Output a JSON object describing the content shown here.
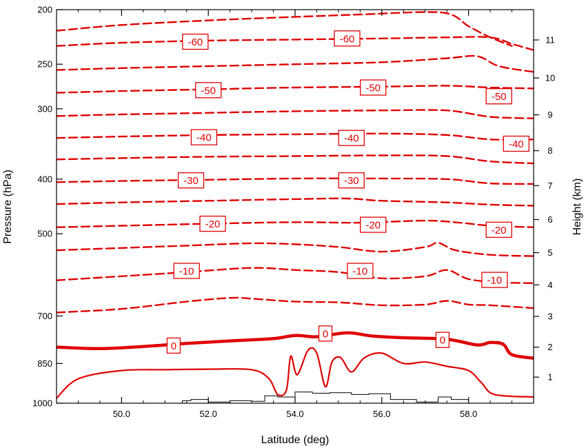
{
  "chart_data": {
    "type": "contour",
    "xlabel": "Latitude (deg)",
    "ylabel_left": "Pressure (hPa)",
    "ylabel_right": "Height (km)",
    "xlim": [
      48.5,
      59.5
    ],
    "ylim_pressure": [
      1000,
      200
    ],
    "x_scale": "linear",
    "y_scale": "log-pressure",
    "x_ticks": [
      {
        "value": 50.0,
        "label": "50.0"
      },
      {
        "value": 52.0,
        "label": "52.0"
      },
      {
        "value": 54.0,
        "label": "54.0"
      },
      {
        "value": 56.0,
        "label": "56.0"
      },
      {
        "value": 58.0,
        "label": "58.0"
      }
    ],
    "pressure_ticks": [
      {
        "value": 200,
        "label": "200"
      },
      {
        "value": 250,
        "label": "250"
      },
      {
        "value": 300,
        "label": "300"
      },
      {
        "value": 400,
        "label": "400"
      },
      {
        "value": 500,
        "label": "500"
      },
      {
        "value": 700,
        "label": "700"
      },
      {
        "value": 850,
        "label": "850"
      },
      {
        "value": 1000,
        "label": "1000"
      }
    ],
    "height_ticks": [
      {
        "value": 1,
        "label": "1"
      },
      {
        "value": 2,
        "label": "2"
      },
      {
        "value": 3,
        "label": "3"
      },
      {
        "value": 4,
        "label": "4"
      },
      {
        "value": 5,
        "label": "5"
      },
      {
        "value": 6,
        "label": "6"
      },
      {
        "value": 7,
        "label": "7"
      },
      {
        "value": 8,
        "label": "8"
      },
      {
        "value": 9,
        "label": "9"
      },
      {
        "value": 10,
        "label": "10"
      },
      {
        "value": 11,
        "label": "11"
      }
    ],
    "contour_color": "#e00000",
    "terrain_color": "#000000",
    "contour_interval": 5,
    "negative_linestyle": "dashed",
    "zero_linestyle": "thick-solid",
    "positive_linestyle": "solid",
    "contours": [
      {
        "level": -65,
        "points": [
          [
            48.5,
            218
          ],
          [
            50,
            213
          ],
          [
            52,
            209
          ],
          [
            54,
            206
          ],
          [
            55.5,
            204
          ],
          [
            57,
            202
          ],
          [
            57.6,
            204
          ],
          [
            58,
            214
          ],
          [
            58.5,
            224
          ],
          [
            59,
            232
          ]
        ]
      },
      {
        "level": -60,
        "points": [
          [
            48.5,
            232
          ],
          [
            50,
            229
          ],
          [
            52,
            227
          ],
          [
            54,
            226
          ],
          [
            56,
            225
          ],
          [
            57.5,
            224
          ],
          [
            58.5,
            224
          ],
          [
            59,
            230
          ],
          [
            59.5,
            236
          ]
        ]
      },
      {
        "level": -55,
        "points": [
          [
            48.5,
            256
          ],
          [
            50,
            254
          ],
          [
            52,
            252
          ],
          [
            54,
            250
          ],
          [
            56,
            248
          ],
          [
            57.5,
            244
          ],
          [
            58.2,
            242
          ],
          [
            58.7,
            252
          ],
          [
            59.5,
            258
          ]
        ]
      },
      {
        "level": -50,
        "points": [
          [
            48.5,
            281
          ],
          [
            50,
            279
          ],
          [
            52,
            277
          ],
          [
            54,
            275
          ],
          [
            56,
            274
          ],
          [
            57.5,
            273
          ],
          [
            58.5,
            275
          ],
          [
            59.5,
            276
          ]
        ]
      },
      {
        "level": -45,
        "points": [
          [
            48.5,
            309
          ],
          [
            50,
            307
          ],
          [
            52,
            305
          ],
          [
            54,
            303
          ],
          [
            56,
            302
          ],
          [
            57.5,
            302
          ],
          [
            58.5,
            310
          ],
          [
            59.5,
            312
          ]
        ]
      },
      {
        "level": -40,
        "points": [
          [
            48.5,
            338
          ],
          [
            50,
            336
          ],
          [
            52,
            334
          ],
          [
            54,
            333
          ],
          [
            56,
            332
          ],
          [
            57.5,
            334
          ],
          [
            58.5,
            340
          ],
          [
            59.5,
            340
          ]
        ]
      },
      {
        "level": -35,
        "points": [
          [
            48.5,
            369
          ],
          [
            50,
            367
          ],
          [
            52,
            365
          ],
          [
            54,
            364
          ],
          [
            56,
            363
          ],
          [
            57.5,
            364
          ],
          [
            58.5,
            372
          ],
          [
            59.5,
            375
          ]
        ]
      },
      {
        "level": -30,
        "points": [
          [
            48.5,
            405
          ],
          [
            50,
            403
          ],
          [
            52,
            401
          ],
          [
            54,
            399
          ],
          [
            56,
            399
          ],
          [
            57.5,
            400
          ],
          [
            58.5,
            407
          ],
          [
            59.5,
            408
          ]
        ]
      },
      {
        "level": -25,
        "points": [
          [
            48.5,
            443
          ],
          [
            50,
            440
          ],
          [
            52,
            437
          ],
          [
            54,
            434
          ],
          [
            55.2,
            433
          ],
          [
            56,
            437
          ],
          [
            57.5,
            440
          ],
          [
            58.5,
            444
          ],
          [
            59.5,
            446
          ]
        ]
      },
      {
        "level": -20,
        "points": [
          [
            48.5,
            487
          ],
          [
            50,
            484
          ],
          [
            52,
            480
          ],
          [
            54,
            477
          ],
          [
            55.5,
            478
          ],
          [
            57,
            474
          ],
          [
            57.8,
            478
          ],
          [
            58.5,
            484
          ],
          [
            59.5,
            487
          ]
        ]
      },
      {
        "level": -15,
        "points": [
          [
            48.5,
            535
          ],
          [
            50,
            530
          ],
          [
            51.5,
            525
          ],
          [
            53,
            520
          ],
          [
            54,
            522
          ],
          [
            55,
            528
          ],
          [
            56,
            538
          ],
          [
            57,
            528
          ],
          [
            57.3,
            519
          ],
          [
            57.7,
            535
          ],
          [
            58.5,
            545
          ],
          [
            59.5,
            548
          ]
        ]
      },
      {
        "level": -10,
        "points": [
          [
            48.5,
            605
          ],
          [
            50,
            595
          ],
          [
            51.5,
            585
          ],
          [
            53,
            575
          ],
          [
            54,
            580
          ],
          [
            55,
            585
          ],
          [
            56,
            600
          ],
          [
            57,
            595
          ],
          [
            57.5,
            580
          ],
          [
            58,
            602
          ],
          [
            58.7,
            610
          ],
          [
            59.5,
            612
          ]
        ]
      },
      {
        "level": -5,
        "points": [
          [
            48.5,
            690
          ],
          [
            50,
            680
          ],
          [
            51.5,
            660
          ],
          [
            52.5,
            650
          ],
          [
            53,
            652
          ],
          [
            54,
            660
          ],
          [
            55,
            662
          ],
          [
            56,
            670
          ],
          [
            57,
            668
          ],
          [
            57.5,
            658
          ],
          [
            58,
            668
          ],
          [
            58.5,
            670
          ],
          [
            59.5,
            678
          ]
        ]
      },
      {
        "level": 0,
        "points": [
          [
            48.5,
            795
          ],
          [
            49.5,
            800
          ],
          [
            50.5,
            793
          ],
          [
            51.5,
            783
          ],
          [
            52.5,
            775
          ],
          [
            53.5,
            768
          ],
          [
            54,
            758
          ],
          [
            54.5,
            762
          ],
          [
            55.2,
            750
          ],
          [
            55.8,
            760
          ],
          [
            56.5,
            765
          ],
          [
            57.5,
            770
          ],
          [
            58.2,
            788
          ],
          [
            58.5,
            780
          ],
          [
            58.8,
            786
          ],
          [
            59,
            820
          ],
          [
            59.5,
            832
          ]
        ]
      },
      {
        "level": 5,
        "points": [
          [
            48.5,
            980
          ],
          [
            49,
            905
          ],
          [
            50,
            875
          ],
          [
            51,
            872
          ],
          [
            52,
            870
          ],
          [
            53,
            872
          ],
          [
            53.4,
            905
          ],
          [
            53.6,
            965
          ],
          [
            53.8,
            948
          ],
          [
            53.9,
            825
          ],
          [
            54.05,
            890
          ],
          [
            54.3,
            805
          ],
          [
            54.5,
            815
          ],
          [
            54.7,
            935
          ],
          [
            54.85,
            845
          ],
          [
            55.05,
            830
          ],
          [
            55.3,
            880
          ],
          [
            55.6,
            830
          ],
          [
            56,
            815
          ],
          [
            56.5,
            850
          ],
          [
            57,
            845
          ],
          [
            57.5,
            860
          ],
          [
            58,
            875
          ],
          [
            58.3,
            920
          ],
          [
            58.6,
            965
          ],
          [
            59.5,
            975
          ]
        ]
      }
    ],
    "terrain": {
      "description": "surface elevation stepped outline near 1000 hPa",
      "points": [
        [
          51.4,
          990
        ],
        [
          51.6,
          985
        ],
        [
          52,
          995
        ],
        [
          52.5,
          990
        ],
        [
          53,
          992
        ],
        [
          53.3,
          970
        ],
        [
          53.6,
          975
        ],
        [
          54,
          955
        ],
        [
          54.4,
          960
        ],
        [
          54.8,
          958
        ],
        [
          55.3,
          965
        ],
        [
          55.7,
          962
        ],
        [
          56.2,
          985
        ],
        [
          56.8,
          995
        ],
        [
          57.3,
          975
        ],
        [
          57.6,
          985
        ],
        [
          58,
          1000
        ]
      ]
    },
    "contour_labels": [
      {
        "text": "-60",
        "x": 51.7,
        "p": 228
      },
      {
        "text": "-60",
        "x": 55.2,
        "p": 225
      },
      {
        "text": "-50",
        "x": 52.0,
        "p": 278
      },
      {
        "text": "-50",
        "x": 55.8,
        "p": 275
      },
      {
        "text": "-50",
        "x": 58.7,
        "p": 285
      },
      {
        "text": "-40",
        "x": 51.9,
        "p": 337
      },
      {
        "text": "-40",
        "x": 55.3,
        "p": 338
      },
      {
        "text": "-40",
        "x": 59.1,
        "p": 346
      },
      {
        "text": "-30",
        "x": 51.6,
        "p": 402
      },
      {
        "text": "-30",
        "x": 55.3,
        "p": 402
      },
      {
        "text": "-20",
        "x": 52.1,
        "p": 480
      },
      {
        "text": "-20",
        "x": 55.8,
        "p": 482
      },
      {
        "text": "-20",
        "x": 58.7,
        "p": 492
      },
      {
        "text": "-10",
        "x": 51.5,
        "p": 582
      },
      {
        "text": "-10",
        "x": 55.5,
        "p": 582
      },
      {
        "text": "-10",
        "x": 58.6,
        "p": 604
      },
      {
        "text": "0",
        "x": 51.2,
        "p": 790
      },
      {
        "text": "0",
        "x": 54.7,
        "p": 752
      },
      {
        "text": "0",
        "x": 57.4,
        "p": 772
      }
    ]
  }
}
